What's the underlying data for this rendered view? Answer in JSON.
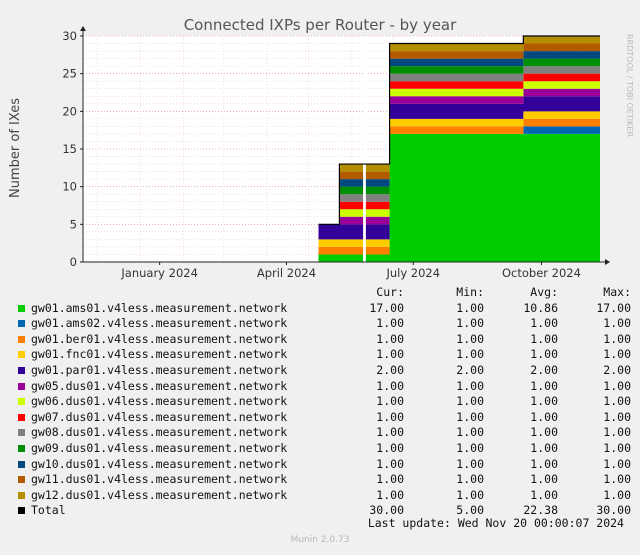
{
  "chart_data": {
    "type": "area",
    "title": "Connected IXPs per Router - by year",
    "ylabel": "Number of IXes",
    "ylim": [
      0,
      30
    ],
    "yticks": [
      0,
      5,
      10,
      15,
      20,
      25,
      30
    ],
    "x_axis": "time",
    "xlim": [
      "2023-11-21",
      "2024-11-26"
    ],
    "xticks": [
      {
        "label": "January 2024",
        "date": "2024-01-15"
      },
      {
        "label": "April 2024",
        "date": "2024-04-15"
      },
      {
        "label": "July 2024",
        "date": "2024-07-15"
      },
      {
        "label": "October 2024",
        "date": "2024-10-15"
      }
    ],
    "stacked": true,
    "grid": true,
    "watermark": "RRDTOOL / TOBI OETIKER",
    "series": [
      {
        "name": "gw01.ams01.v4less.measurement.network",
        "color": "#00cc00",
        "cur": "17.00",
        "min": "1.00",
        "avg": "10.86",
        "max": "17.00",
        "points": [
          [
            "2024-05-08",
            1
          ],
          [
            "2024-06-27",
            1
          ],
          [
            "2024-06-28",
            17
          ],
          [
            "2024-11-26",
            17
          ]
        ]
      },
      {
        "name": "gw01.ams02.v4less.measurement.network",
        "color": "#0066b3",
        "cur": "1.00",
        "min": "1.00",
        "avg": "1.00",
        "max": "1.00",
        "points": [
          [
            "2024-10-01",
            0
          ],
          [
            "2024-10-02",
            1
          ],
          [
            "2024-11-26",
            1
          ]
        ]
      },
      {
        "name": "gw01.ber01.v4less.measurement.network",
        "color": "#ff8000",
        "cur": "1.00",
        "min": "1.00",
        "avg": "1.00",
        "max": "1.00",
        "points": [
          [
            "2024-05-08",
            1
          ],
          [
            "2024-11-26",
            1
          ]
        ]
      },
      {
        "name": "gw01.fnc01.v4less.measurement.network",
        "color": "#ffcc00",
        "cur": "1.00",
        "min": "1.00",
        "avg": "1.00",
        "max": "1.00",
        "points": [
          [
            "2024-05-08",
            1
          ],
          [
            "2024-11-26",
            1
          ]
        ]
      },
      {
        "name": "gw01.par01.v4less.measurement.network",
        "color": "#330099",
        "cur": "2.00",
        "min": "2.00",
        "avg": "2.00",
        "max": "2.00",
        "points": [
          [
            "2024-05-08",
            2
          ],
          [
            "2024-11-26",
            2
          ]
        ]
      },
      {
        "name": "gw05.dus01.v4less.measurement.network",
        "color": "#990099",
        "cur": "1.00",
        "min": "1.00",
        "avg": "1.00",
        "max": "1.00",
        "points": [
          [
            "2024-05-08",
            0
          ],
          [
            "2024-05-22",
            0
          ],
          [
            "2024-05-23",
            1
          ],
          [
            "2024-11-26",
            1
          ]
        ]
      },
      {
        "name": "gw06.dus01.v4less.measurement.network",
        "color": "#ccff00",
        "cur": "1.00",
        "min": "1.00",
        "avg": "1.00",
        "max": "1.00",
        "points": [
          [
            "2024-05-08",
            0
          ],
          [
            "2024-05-22",
            0
          ],
          [
            "2024-05-23",
            1
          ],
          [
            "2024-11-26",
            1
          ]
        ]
      },
      {
        "name": "gw07.dus01.v4less.measurement.network",
        "color": "#ff0000",
        "cur": "1.00",
        "min": "1.00",
        "avg": "1.00",
        "max": "1.00",
        "points": [
          [
            "2024-05-08",
            0
          ],
          [
            "2024-05-22",
            0
          ],
          [
            "2024-05-23",
            1
          ],
          [
            "2024-11-26",
            1
          ]
        ]
      },
      {
        "name": "gw08.dus01.v4less.measurement.network",
        "color": "#808080",
        "cur": "1.00",
        "min": "1.00",
        "avg": "1.00",
        "max": "1.00",
        "points": [
          [
            "2024-05-08",
            0
          ],
          [
            "2024-05-22",
            0
          ],
          [
            "2024-05-23",
            1
          ],
          [
            "2024-11-26",
            1
          ]
        ]
      },
      {
        "name": "gw09.dus01.v4less.measurement.network",
        "color": "#008f00",
        "cur": "1.00",
        "min": "1.00",
        "avg": "1.00",
        "max": "1.00",
        "points": [
          [
            "2024-05-08",
            0
          ],
          [
            "2024-05-22",
            0
          ],
          [
            "2024-05-23",
            1
          ],
          [
            "2024-11-26",
            1
          ]
        ]
      },
      {
        "name": "gw10.dus01.v4less.measurement.network",
        "color": "#00487d",
        "cur": "1.00",
        "min": "1.00",
        "avg": "1.00",
        "max": "1.00",
        "points": [
          [
            "2024-05-08",
            0
          ],
          [
            "2024-05-22",
            0
          ],
          [
            "2024-05-23",
            1
          ],
          [
            "2024-11-26",
            1
          ]
        ]
      },
      {
        "name": "gw11.dus01.v4less.measurement.network",
        "color": "#b35a00",
        "cur": "1.00",
        "min": "1.00",
        "avg": "1.00",
        "max": "1.00",
        "points": [
          [
            "2024-05-08",
            0
          ],
          [
            "2024-05-22",
            0
          ],
          [
            "2024-05-23",
            1
          ],
          [
            "2024-11-26",
            1
          ]
        ]
      },
      {
        "name": "gw12.dus01.v4less.measurement.network",
        "color": "#b38f00",
        "cur": "1.00",
        "min": "1.00",
        "avg": "1.00",
        "max": "1.00",
        "points": [
          [
            "2024-05-08",
            0
          ],
          [
            "2024-05-22",
            0
          ],
          [
            "2024-05-23",
            1
          ],
          [
            "2024-11-26",
            1
          ]
        ]
      }
    ],
    "total": {
      "name": "Total",
      "color": "#000000",
      "cur": "30.00",
      "min": "5.00",
      "avg": "22.38",
      "max": "30.00"
    },
    "gaps": [
      [
        "2024-06-09",
        "2024-06-11"
      ]
    ]
  },
  "legend": {
    "headers": {
      "cur": "Cur:",
      "min": "Min:",
      "avg": "Avg:",
      "max": "Max:"
    }
  },
  "footer": {
    "last_update": "Last update: Wed Nov 20 00:00:07 2024",
    "munin": "Munin 2.0.73"
  }
}
